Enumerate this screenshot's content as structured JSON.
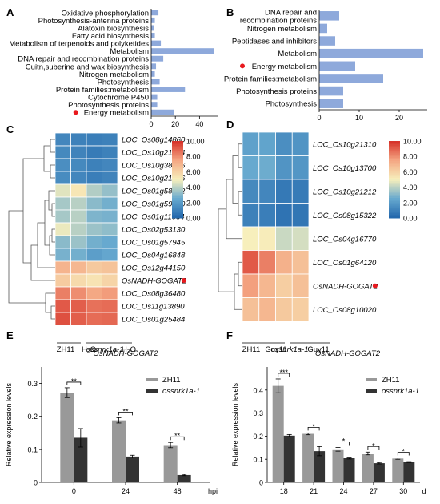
{
  "chart_data": [
    {
      "panel": "A",
      "type": "bar",
      "orientation": "horizontal",
      "categories": [
        "Oxidative phosphorylation",
        "Photosynthesis-antenna proteins",
        "Alatoxin biosynthesis",
        "Fatty acid biosynthesis",
        "Metabolism of terpenoids and polyketides",
        "Metabolism",
        "DNA repair and recombination proteins",
        "Cuitn,suberine and wax biosynthesis",
        "Nitrogen metabolism",
        "Photosynthesis",
        "Protein families:metabolism",
        "Cytochrome P450",
        "Photosynthesis proteins",
        "Energy metabolism"
      ],
      "values": [
        6,
        3,
        2,
        3,
        8,
        52,
        10,
        4,
        3,
        7,
        28,
        5,
        5,
        19
      ],
      "highlighted": "Energy metabolism",
      "xlim": [
        0,
        55
      ],
      "xticks": [
        "0",
        "20",
        "40"
      ],
      "bar_color": "#8ea9db"
    },
    {
      "panel": "B",
      "type": "bar",
      "orientation": "horizontal",
      "categories": [
        "DNA repair and recombination proteins",
        "Nitrogen metabolism",
        "Peptidases and inhibitors",
        "Metabolism",
        "Energy metabolism",
        "Protein families:metabolism",
        "Photosynthesis proteins",
        "Photosynthesis"
      ],
      "values": [
        5,
        2,
        4,
        26,
        9,
        16,
        6,
        6
      ],
      "highlighted": "Energy metabolism",
      "xlim": [
        0,
        27
      ],
      "xticks": [
        "0",
        "10",
        "20"
      ],
      "bar_color": "#8ea9db"
    },
    {
      "panel": "C",
      "type": "heatmap",
      "rows": [
        "LOC_Os08g14860",
        "LOC_Os10g21324",
        "LOC_Os10g38276",
        "LOC_Os10g21266",
        "LOC_Os01g58022",
        "LOC_Os01g59920",
        "LOC_Os01g11054",
        "LOC_Os02g53130",
        "LOC_Os01g57945",
        "LOC_Os04g16848",
        "LOC_Os12g44150",
        "OsNADH-GOGAT2",
        "LOC_Os08g36480",
        "LOC_Os11g13890",
        "LOC_Os01g25484"
      ],
      "highlighted": "OsNADH-GOGAT2",
      "values": [
        [
          1.2,
          1.0,
          0.9,
          1.0
        ],
        [
          1.3,
          1.1,
          0.8,
          1.0
        ],
        [
          1.5,
          1.3,
          1.0,
          1.2
        ],
        [
          1.4,
          1.2,
          0.9,
          1.1
        ],
        [
          4.6,
          5.3,
          3.8,
          3.3
        ],
        [
          3.6,
          3.9,
          3.1,
          2.7
        ],
        [
          3.6,
          3.9,
          2.9,
          2.8
        ],
        [
          4.8,
          3.9,
          3.4,
          3.2
        ],
        [
          3.1,
          3.4,
          2.7,
          2.5
        ],
        [
          2.8,
          2.7,
          2.1,
          2.4
        ],
        [
          7.0,
          6.9,
          6.3,
          6.5
        ],
        [
          6.2,
          5.7,
          5.4,
          5.9
        ],
        [
          8.3,
          8.0,
          7.4,
          7.7
        ],
        [
          9.1,
          9.0,
          8.6,
          8.7
        ],
        [
          9.3,
          9.0,
          8.7,
          8.8
        ]
      ],
      "column_labels": [
        "ZH11",
        "H₂O",
        "ossnrk1a-1",
        "H₂O"
      ],
      "scale": [
        "10.00",
        "8.00",
        "6.00",
        "4.00",
        "2.00",
        "0.00"
      ],
      "range": [
        0,
        10
      ]
    },
    {
      "panel": "D",
      "type": "heatmap",
      "rows": [
        "LOC_Os10g21310",
        "LOC_Os10g13700",
        "LOC_Os10g21212",
        "LOC_Os08g15322",
        "LOC_Os04g16770",
        "LOC_Os01g64120",
        "OsNADH-GOGAT2",
        "LOC_Os08g10020"
      ],
      "highlighted": "OsNADH-GOGAT2",
      "values": [
        [
          2.2,
          2.3,
          1.5,
          1.7
        ],
        [
          2.5,
          2.6,
          1.7,
          1.8
        ],
        [
          1.3,
          1.2,
          0.7,
          0.8
        ],
        [
          1.0,
          0.9,
          0.5,
          0.6
        ],
        [
          5.0,
          5.1,
          4.2,
          4.4
        ],
        [
          9.1,
          8.3,
          7.1,
          6.6
        ],
        [
          7.6,
          6.9,
          6.1,
          6.6
        ],
        [
          6.6,
          6.9,
          6.3,
          6.1
        ]
      ],
      "column_labels": [
        "ZH11",
        "Guy11",
        "ossnrk1a-1",
        "Guy11"
      ],
      "scale": [
        "10.00",
        "8.00",
        "6.00",
        "4.00",
        "2.00",
        "0.00"
      ],
      "range": [
        0,
        10
      ]
    },
    {
      "panel": "E",
      "type": "bar",
      "title": "OsNADH-GOGAT2",
      "categories": [
        "0",
        "24",
        "48"
      ],
      "xunit": "hpi",
      "ylabel": "Relative expression levels",
      "ylim": [
        0,
        0.35
      ],
      "yticks": [
        "0",
        "0.1",
        "0.2",
        "0.3"
      ],
      "series": [
        {
          "name": "ZH11",
          "values": [
            0.272,
            0.188,
            0.113
          ],
          "errors": [
            0.015,
            0.008,
            0.008
          ],
          "color": "#999999"
        },
        {
          "name": "ossnrk1a-1",
          "values": [
            0.135,
            0.078,
            0.022
          ],
          "errors": [
            0.028,
            0.004,
            0.002
          ],
          "color": "#333333"
        }
      ],
      "significance": [
        "**",
        "**",
        "**"
      ]
    },
    {
      "panel": "F",
      "type": "bar",
      "title": "OsNADH-GOGAT2",
      "categories": [
        "18",
        "21",
        "24",
        "27",
        "30"
      ],
      "xunit": "d",
      "ylabel": "Relative expression levels",
      "ylim": [
        0,
        0.5
      ],
      "yticks": [
        "0",
        "0.1",
        "0.2",
        "0.3",
        "0.4"
      ],
      "series": [
        {
          "name": "ZH11",
          "values": [
            0.418,
            0.21,
            0.143,
            0.125,
            0.103
          ],
          "errors": [
            0.03,
            0.004,
            0.008,
            0.006,
            0.003
          ],
          "color": "#999999"
        },
        {
          "name": "ossnrk1a-1",
          "values": [
            0.202,
            0.135,
            0.105,
            0.083,
            0.088
          ],
          "errors": [
            0.005,
            0.02,
            0.004,
            0.003,
            0.002
          ],
          "color": "#333333"
        }
      ],
      "significance": [
        "***",
        "*",
        "*",
        "*",
        "*"
      ]
    }
  ],
  "panel_labels": [
    "A",
    "B",
    "C",
    "D",
    "E",
    "F"
  ],
  "colors": {
    "bar": "#8ea9db",
    "highlight_dot": "#e8191e",
    "grey": "#999999",
    "dark": "#333333"
  }
}
